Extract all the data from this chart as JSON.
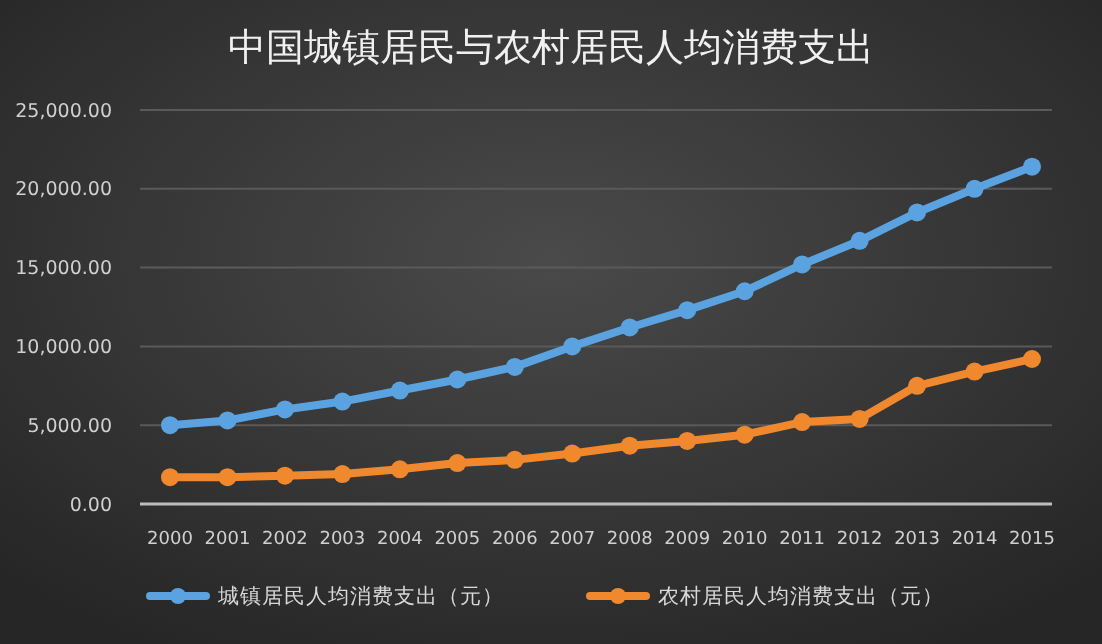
{
  "chart_data": {
    "type": "line",
    "title": "中国城镇居民与农村居民人均消费支出",
    "categories": [
      "2000",
      "2001",
      "2002",
      "2003",
      "2004",
      "2005",
      "2006",
      "2007",
      "2008",
      "2009",
      "2010",
      "2011",
      "2012",
      "2013",
      "2014",
      "2015"
    ],
    "series": [
      {
        "name": "城镇居民人均消费支出（元）",
        "color": "#5ba3e0",
        "values": [
          5000,
          5300,
          6000,
          6500,
          7200,
          7900,
          8700,
          10000,
          11200,
          12300,
          13500,
          15200,
          16700,
          18500,
          20000,
          21400
        ]
      },
      {
        "name": "农村居民人均消费支出（元）",
        "color": "#f0892e",
        "values": [
          1700,
          1700,
          1800,
          1900,
          2200,
          2600,
          2800,
          3200,
          3700,
          4000,
          4400,
          5200,
          5400,
          7500,
          8400,
          9200
        ]
      }
    ],
    "ylim": [
      0,
      25000
    ],
    "yticks": [
      {
        "value": 0,
        "label": "0.00"
      },
      {
        "value": 5000,
        "label": "5,000.00"
      },
      {
        "value": 10000,
        "label": "10,000.00"
      },
      {
        "value": 15000,
        "label": "15,000.00"
      },
      {
        "value": 20000,
        "label": "20,000.00"
      },
      {
        "value": 25000,
        "label": "25,000.00"
      }
    ],
    "grid": "y",
    "legend": "bottom",
    "marker": "circle",
    "line_style": "solid"
  }
}
